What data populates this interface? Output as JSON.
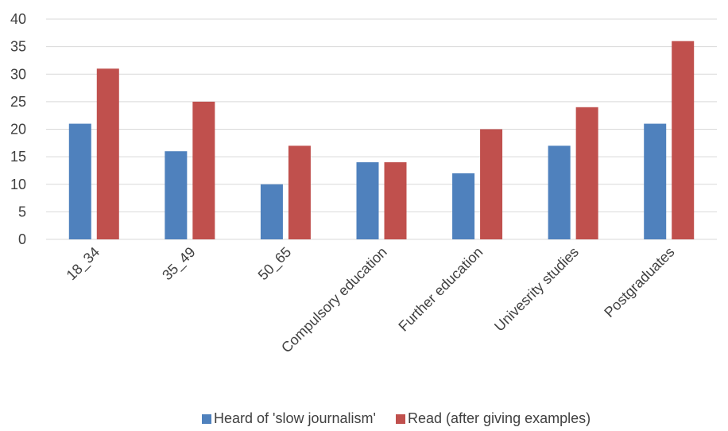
{
  "chart_data": {
    "type": "bar",
    "title": "",
    "xlabel": "",
    "ylabel": "",
    "ylim": [
      0,
      40
    ],
    "yticks": [
      0,
      5,
      10,
      15,
      20,
      25,
      30,
      35,
      40
    ],
    "grid": true,
    "legend_position": "bottom",
    "categories": [
      "18_34",
      "35_49",
      "50_65",
      "Compulsory education",
      "Further education",
      "Univesrity studies",
      "Postgraduates"
    ],
    "series": [
      {
        "name": "Heard of 'slow journalism'",
        "color": "#4f81bd",
        "values": [
          21,
          16,
          10,
          14,
          12,
          17,
          21
        ]
      },
      {
        "name": "Read (after giving examples)",
        "color": "#c0504d",
        "values": [
          31,
          25,
          17,
          14,
          20,
          24,
          36
        ]
      }
    ]
  }
}
